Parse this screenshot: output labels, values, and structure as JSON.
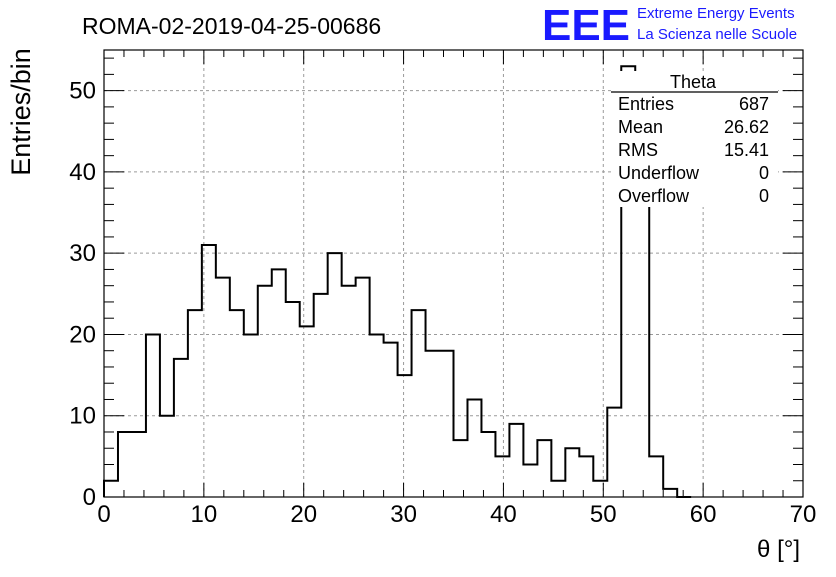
{
  "chart_data": {
    "type": "bar",
    "title": "ROMA-02-2019-04-25-00686",
    "xlabel": "θ [°]",
    "ylabel": "Entries/bin",
    "xlim": [
      0,
      70
    ],
    "ylim": [
      0,
      55
    ],
    "x_ticks": [
      0,
      10,
      20,
      30,
      40,
      50,
      60,
      70
    ],
    "y_ticks": [
      0,
      10,
      20,
      30,
      40,
      50
    ],
    "grid": true,
    "bin_edges": [
      0,
      1.4,
      2.8,
      4.2,
      5.6,
      7,
      8.4,
      9.8,
      11.2,
      12.6,
      14,
      15.4,
      16.8,
      18.2,
      19.6,
      21,
      22.4,
      23.8,
      25.2,
      26.6,
      28,
      29.4,
      30.8,
      32.2,
      33.6,
      35,
      36.4,
      37.8,
      39.2,
      40.6,
      42,
      43.4,
      44.8,
      46.2,
      47.6,
      49,
      50.4,
      51.8,
      53.2,
      54.6,
      56,
      57.4,
      58.8
    ],
    "values": [
      2,
      8,
      8,
      20,
      10,
      17,
      23,
      31,
      27,
      23,
      20,
      26,
      28,
      24,
      21,
      25,
      30,
      26,
      27,
      20,
      19,
      15,
      23,
      18,
      18,
      7,
      12,
      8,
      5,
      9,
      4,
      7,
      2,
      6,
      5,
      2,
      11,
      53,
      41,
      5,
      1,
      0
    ],
    "stats": {
      "name": "Theta",
      "rows": [
        {
          "label": "Entries",
          "value": "687"
        },
        {
          "label": "Mean",
          "value": "26.62"
        },
        {
          "label": "RMS",
          "value": "15.41"
        },
        {
          "label": "Underflow",
          "value": "0"
        },
        {
          "label": "Overflow",
          "value": "0"
        }
      ]
    },
    "logo": {
      "mark": "EEE",
      "line1": "Extreme Energy Events",
      "line2": "La Scienza nelle Scuole",
      "color": "#1a1aff"
    }
  }
}
